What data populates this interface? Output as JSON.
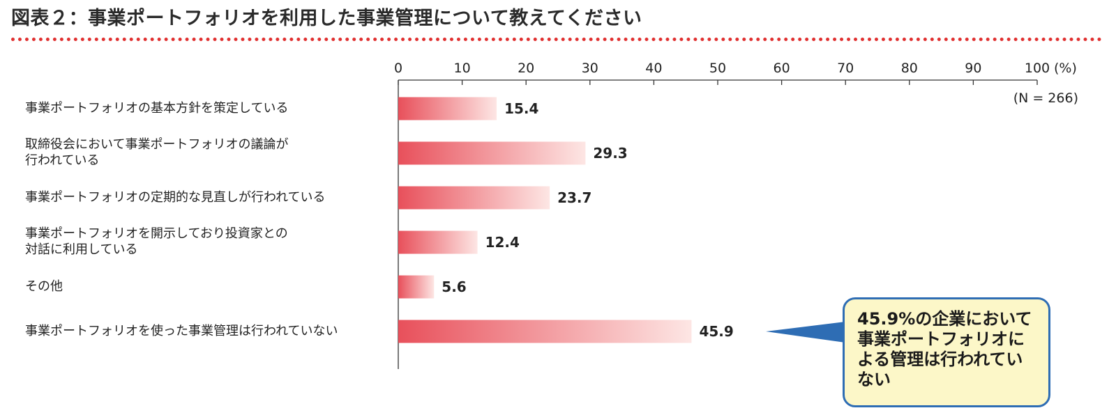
{
  "figure": {
    "title": "図表２：事業ポートフォリオを利用した事業管理について教えてください",
    "sample_note": "(N = 266)"
  },
  "callout": {
    "text": "45.9%の企業において事業ポートフォリオによる管理は行われていない"
  },
  "colors": {
    "bar_start": "#e8505b",
    "bar_end": "#fde6e4",
    "title_rule": "#e03030",
    "callout_border": "#2e6db4",
    "callout_fill": "#fcf7c8",
    "callout_pointer": "#2e6db4"
  },
  "chart_data": {
    "type": "bar",
    "orientation": "horizontal",
    "categories": [
      "事業ポートフォリオの基本方針を策定している",
      "取締役会において事業ポートフォリオの議論が\n行われている",
      "事業ポートフォリオの定期的な見直しが行われている",
      "事業ポートフォリオを開示しており投資家との\n対話に利用している",
      "その他",
      "事業ポートフォリオを使った事業管理は行われていない"
    ],
    "values": [
      15.4,
      29.3,
      23.7,
      12.4,
      5.6,
      45.9
    ],
    "value_labels": [
      "15.4",
      "29.3",
      "23.7",
      "12.4",
      "5.6",
      "45.9"
    ],
    "x_ticks": [
      "0",
      "10",
      "20",
      "30",
      "40",
      "50",
      "60",
      "70",
      "80",
      "90",
      "100"
    ],
    "x_unit": "(%)",
    "xlim": [
      0,
      100
    ],
    "axis_position": "top",
    "grid": false,
    "legend": "none"
  }
}
